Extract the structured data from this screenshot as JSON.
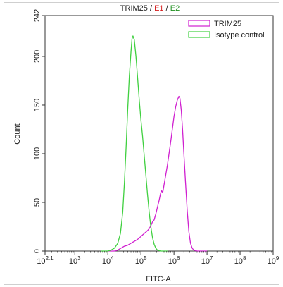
{
  "chart_data": {
    "type": "line",
    "title_parts": [
      {
        "text": "TRIM25",
        "color": "#222222"
      },
      {
        "text": " / ",
        "color": "#222222"
      },
      {
        "text": "E1",
        "color": "#d42020"
      },
      {
        "text": " / ",
        "color": "#222222"
      },
      {
        "text": "E2",
        "color": "#1f8f1f"
      }
    ],
    "xlabel": "FITC-A",
    "ylabel": "Count",
    "x_scale": "log",
    "xlim_exponent": [
      2.1,
      9
    ],
    "ylim": [
      0,
      242
    ],
    "grid": false,
    "legend_position": "top-right",
    "x_ticks": [
      {
        "base": "10",
        "exp": "2.1",
        "value_exp": 2.1
      },
      {
        "base": "10",
        "exp": "3",
        "value_exp": 3
      },
      {
        "base": "10",
        "exp": "4",
        "value_exp": 4
      },
      {
        "base": "10",
        "exp": "5",
        "value_exp": 5
      },
      {
        "base": "10",
        "exp": "6",
        "value_exp": 6
      },
      {
        "base": "10",
        "exp": "7",
        "value_exp": 7
      },
      {
        "base": "10",
        "exp": "8",
        "value_exp": 8
      },
      {
        "base": "10",
        "exp": "9",
        "value_exp": 9
      }
    ],
    "y_ticks": [
      "0",
      "50",
      "100",
      "150",
      "200",
      "242"
    ],
    "y_tick_values": [
      0,
      50,
      100,
      150,
      200,
      242
    ],
    "series": [
      {
        "name": "TRIM25",
        "color": "#d020d0",
        "points": [
          [
            4.0,
            0
          ],
          [
            4.2,
            0
          ],
          [
            4.3,
            1
          ],
          [
            4.4,
            3
          ],
          [
            4.5,
            5
          ],
          [
            4.6,
            6
          ],
          [
            4.7,
            8
          ],
          [
            4.8,
            10
          ],
          [
            4.9,
            12
          ],
          [
            5.0,
            15
          ],
          [
            5.1,
            18
          ],
          [
            5.2,
            21
          ],
          [
            5.25,
            23
          ],
          [
            5.3,
            26
          ],
          [
            5.35,
            30
          ],
          [
            5.4,
            32
          ],
          [
            5.45,
            38
          ],
          [
            5.5,
            45
          ],
          [
            5.55,
            52
          ],
          [
            5.6,
            60
          ],
          [
            5.63,
            62
          ],
          [
            5.66,
            60
          ],
          [
            5.7,
            68
          ],
          [
            5.75,
            78
          ],
          [
            5.8,
            88
          ],
          [
            5.85,
            100
          ],
          [
            5.9,
            112
          ],
          [
            5.95,
            125
          ],
          [
            6.0,
            138
          ],
          [
            6.05,
            148
          ],
          [
            6.1,
            155
          ],
          [
            6.15,
            159
          ],
          [
            6.18,
            157
          ],
          [
            6.22,
            145
          ],
          [
            6.26,
            125
          ],
          [
            6.3,
            100
          ],
          [
            6.35,
            70
          ],
          [
            6.4,
            42
          ],
          [
            6.45,
            20
          ],
          [
            6.5,
            8
          ],
          [
            6.55,
            3
          ],
          [
            6.6,
            1
          ],
          [
            6.7,
            0
          ],
          [
            7.0,
            0
          ]
        ]
      },
      {
        "name": "Isotype control",
        "color": "#40d040",
        "points": [
          [
            3.8,
            0
          ],
          [
            4.0,
            0
          ],
          [
            4.1,
            1
          ],
          [
            4.2,
            3
          ],
          [
            4.3,
            8
          ],
          [
            4.38,
            18
          ],
          [
            4.45,
            40
          ],
          [
            4.5,
            70
          ],
          [
            4.55,
            105
          ],
          [
            4.6,
            145
          ],
          [
            4.65,
            180
          ],
          [
            4.7,
            205
          ],
          [
            4.73,
            218
          ],
          [
            4.76,
            221
          ],
          [
            4.8,
            217
          ],
          [
            4.85,
            200
          ],
          [
            4.9,
            178
          ],
          [
            4.95,
            155
          ],
          [
            5.0,
            135
          ],
          [
            5.05,
            118
          ],
          [
            5.1,
            98
          ],
          [
            5.15,
            78
          ],
          [
            5.2,
            58
          ],
          [
            5.25,
            40
          ],
          [
            5.3,
            25
          ],
          [
            5.35,
            14
          ],
          [
            5.4,
            7
          ],
          [
            5.45,
            3
          ],
          [
            5.5,
            1
          ],
          [
            5.6,
            0
          ],
          [
            5.8,
            0
          ]
        ]
      }
    ]
  }
}
